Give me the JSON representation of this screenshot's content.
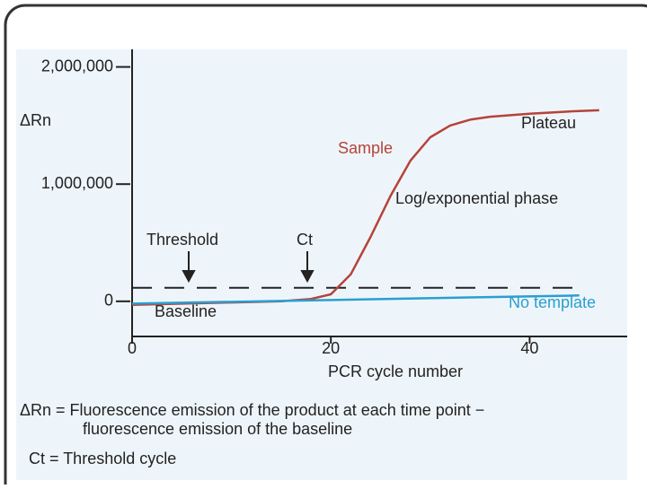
{
  "chart_data": {
    "type": "line",
    "y_label": "ΔRn",
    "x_label": "PCR cycle number",
    "xlim": [
      0,
      50
    ],
    "ylim": [
      -300000,
      2150000
    ],
    "xticks": [
      0,
      20,
      40
    ],
    "yticks": [
      {
        "value": 0,
        "label": "0"
      },
      {
        "value": 1000000,
        "label": "1,000,000"
      },
      {
        "value": 2000000,
        "label": "2,000,000"
      }
    ],
    "series": [
      {
        "name": "Sample",
        "color": "#b5433a",
        "x": [
          0,
          5,
          10,
          15,
          18,
          20,
          22,
          24,
          26,
          28,
          30,
          32,
          34,
          36,
          40,
          44,
          47
        ],
        "values": [
          -30000,
          -20000,
          -10000,
          0,
          20000,
          60000,
          230000,
          550000,
          900000,
          1200000,
          1400000,
          1500000,
          1550000,
          1575000,
          1600000,
          1620000,
          1630000
        ]
      },
      {
        "name": "No template",
        "color": "#2a9fd0",
        "x": [
          0,
          45
        ],
        "values": [
          -20000,
          50000
        ]
      }
    ],
    "threshold": {
      "label": "Threshold",
      "value": 115000
    },
    "annotations": [
      "Plateau",
      "Log/exponential phase",
      "Ct",
      "Baseline"
    ],
    "definitions": [
      "ΔRn = Fluorescence emission of the product at each time point −",
      "fluorescence emission of the baseline",
      "Ct = Threshold cycle"
    ]
  }
}
